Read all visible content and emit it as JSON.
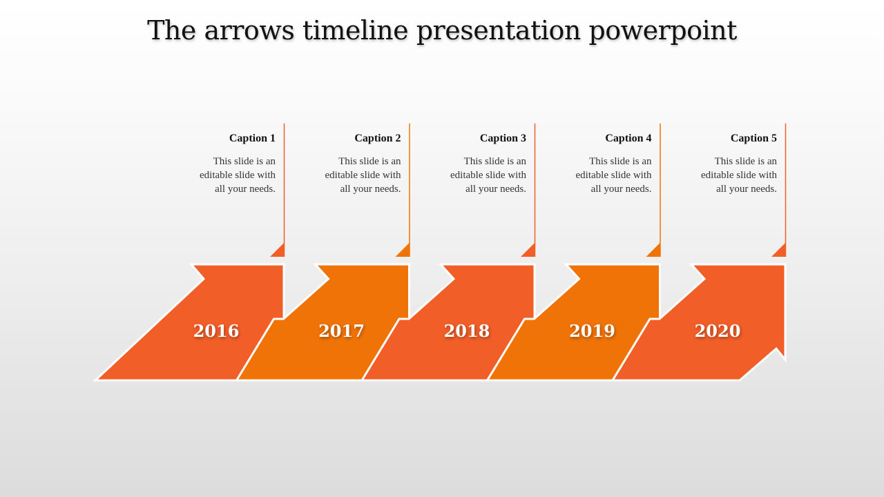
{
  "title": "The arrows timeline presentation powerpoint",
  "colors": {
    "dark_orange": "#F25E28",
    "light_orange": "#F07308",
    "background": "#eeeeee"
  },
  "steps": [
    {
      "year": "2016",
      "caption": "Caption 1",
      "text": [
        "This slide is an",
        "editable slide with",
        "all your needs."
      ],
      "color": "#F25E28"
    },
    {
      "year": "2017",
      "caption": "Caption 2",
      "text": [
        "This slide is an",
        "editable slide with",
        "all your needs."
      ],
      "color": "#F07308"
    },
    {
      "year": "2018",
      "caption": "Caption 3",
      "text": [
        "This slide is an",
        "editable slide with",
        "all your needs."
      ],
      "color": "#F25E28"
    },
    {
      "year": "2019",
      "caption": "Caption 4",
      "text": [
        "This slide is an",
        "editable slide with",
        "all your needs."
      ],
      "color": "#F07308"
    },
    {
      "year": "2020",
      "caption": "Caption 5",
      "text": [
        "This slide is an",
        "editable slide with",
        "all your needs."
      ],
      "color": "#F25E28"
    }
  ]
}
